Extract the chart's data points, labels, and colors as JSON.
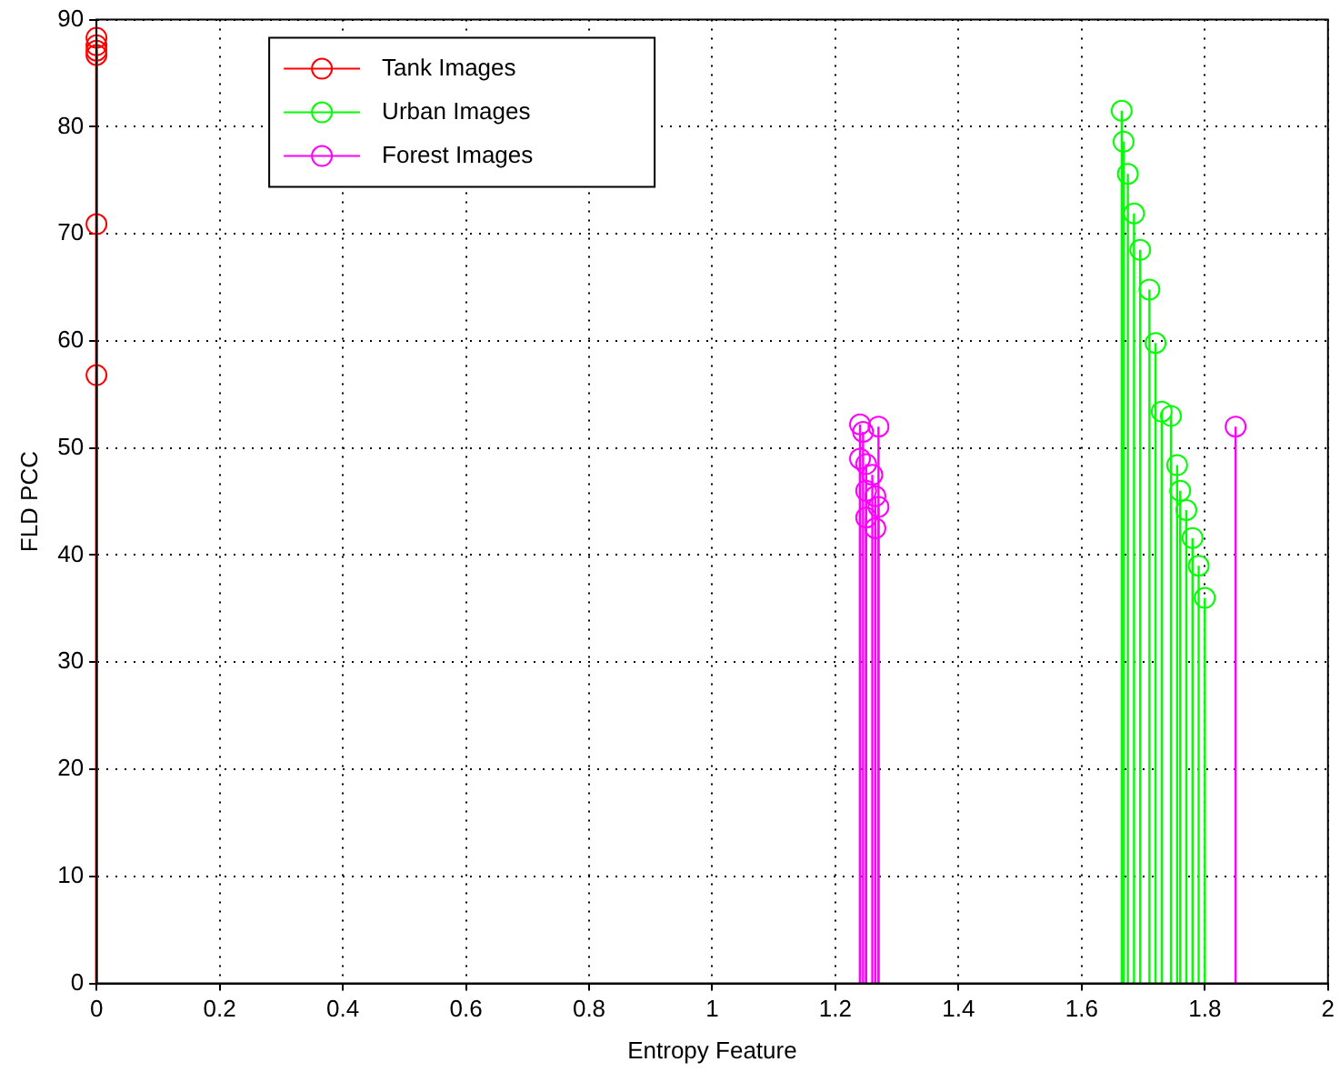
{
  "chart_data": {
    "type": "lollipop",
    "xlabel": "Entropy Feature",
    "ylabel": "FLD PCC",
    "xlim": [
      0,
      2
    ],
    "xticks": [
      0,
      0.2,
      0.4,
      0.6,
      0.8,
      1,
      1.2,
      1.4,
      1.6,
      1.8,
      2
    ],
    "ylim": [
      0,
      90
    ],
    "yticks": [
      0,
      10,
      20,
      30,
      40,
      50,
      60,
      70,
      80,
      90
    ],
    "grid": true,
    "legend": "top left",
    "marker": "circle",
    "line_style": "solid",
    "series": [
      {
        "name": "Tank Images",
        "color": "#ff0000",
        "x": [
          0,
          0,
          0,
          0,
          0,
          0
        ],
        "values": [
          88.3,
          87.6,
          87.1,
          86.7,
          70.9,
          56.8
        ]
      },
      {
        "name": "Urban Images",
        "color": "#00ff00",
        "x": [
          1.665,
          1.668,
          1.675,
          1.685,
          1.695,
          1.71,
          1.72,
          1.73,
          1.745,
          1.755,
          1.76,
          1.77,
          1.78,
          1.79,
          1.8
        ],
        "values": [
          81.5,
          78.6,
          75.6,
          71.9,
          68.5,
          64.8,
          59.8,
          53.4,
          53.0,
          48.4,
          46.0,
          44.2,
          41.6,
          39.0,
          36.0
        ]
      },
      {
        "name": "Forest Images",
        "color": "#ff00ff",
        "x": [
          1.24,
          1.245,
          1.27,
          1.24,
          1.25,
          1.26,
          1.265,
          1.27,
          1.25,
          1.265,
          1.25,
          1.85
        ],
        "values": [
          52.2,
          51.5,
          52.0,
          49.0,
          48.5,
          47.5,
          45.5,
          44.5,
          43.5,
          42.5,
          46.0,
          52.0
        ]
      }
    ]
  }
}
